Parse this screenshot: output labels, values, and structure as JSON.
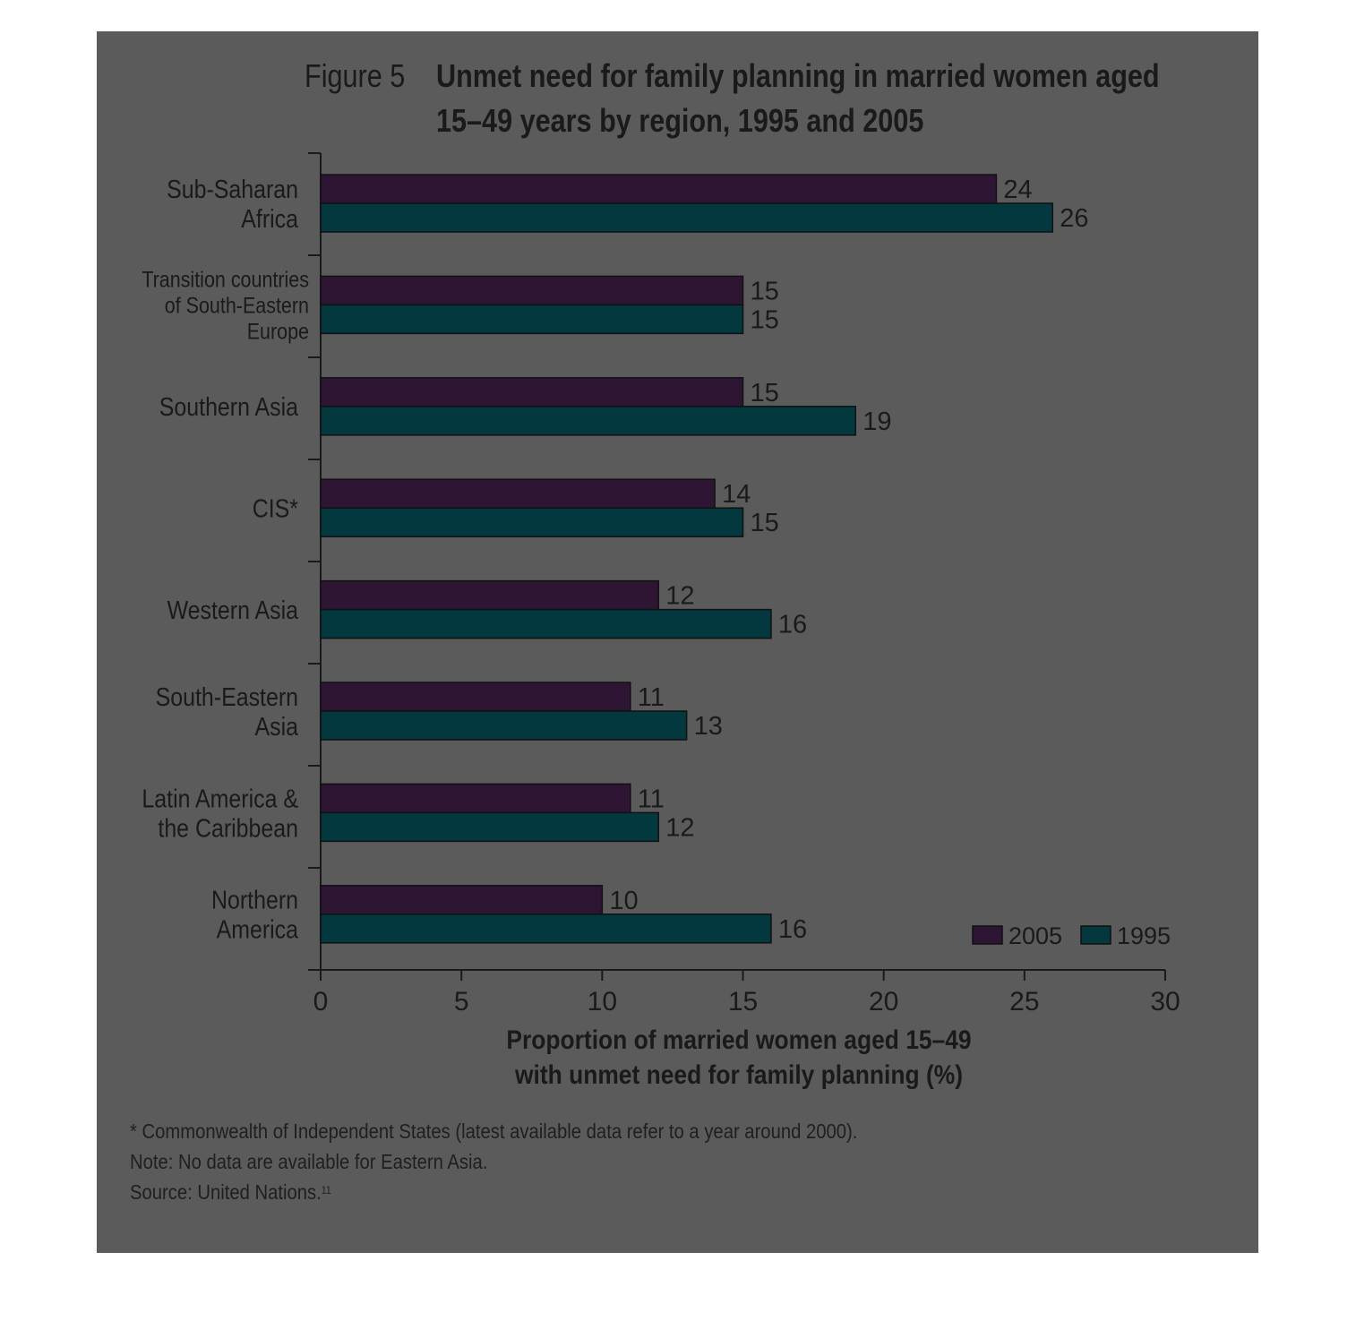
{
  "title": {
    "figure_label": "Figure 5",
    "main": "Unmet need for family planning in married women aged 15–49 years by region, 1995 and 2005"
  },
  "chart_data": {
    "type": "bar",
    "orientation": "horizontal",
    "categories": [
      [
        "Sub-Saharan",
        "Africa"
      ],
      [
        "Transition countries",
        "of South-Eastern",
        "Europe"
      ],
      [
        "Southern Asia"
      ],
      [
        "CIS*"
      ],
      [
        "Western Asia"
      ],
      [
        "South-Eastern",
        "Asia"
      ],
      [
        "Latin America &",
        "the Caribbean"
      ],
      [
        "Northern",
        "America"
      ]
    ],
    "series": [
      {
        "name": "2005",
        "color": "#2d1533",
        "values": [
          24,
          15,
          15,
          14,
          12,
          11,
          11,
          10
        ]
      },
      {
        "name": "1995",
        "color": "#03383f",
        "values": [
          26,
          15,
          19,
          15,
          16,
          13,
          12,
          16
        ]
      }
    ],
    "value_labels": [
      [
        "24",
        "15",
        "15",
        "14",
        "12",
        "11",
        "11",
        "10"
      ],
      [
        "26",
        "15",
        "19",
        "15",
        "16",
        "13",
        "12",
        "16"
      ]
    ],
    "xlim": [
      0,
      30
    ],
    "xticks": [
      0,
      5,
      10,
      15,
      20,
      25,
      30
    ],
    "xlabel": [
      "Proportion of married women aged 15–49",
      "with unmet need for family planning (%)"
    ],
    "legend": {
      "placement": "bottom-right",
      "entries": [
        "2005",
        "1995"
      ]
    },
    "grid": false
  },
  "footer": {
    "note1": "* Commonwealth of Independent States (latest available data refer to a year around 2000).",
    "note2": "Note: No data are available for Eastern Asia.",
    "source": "Source: United Nations.",
    "source_ref": "11"
  }
}
